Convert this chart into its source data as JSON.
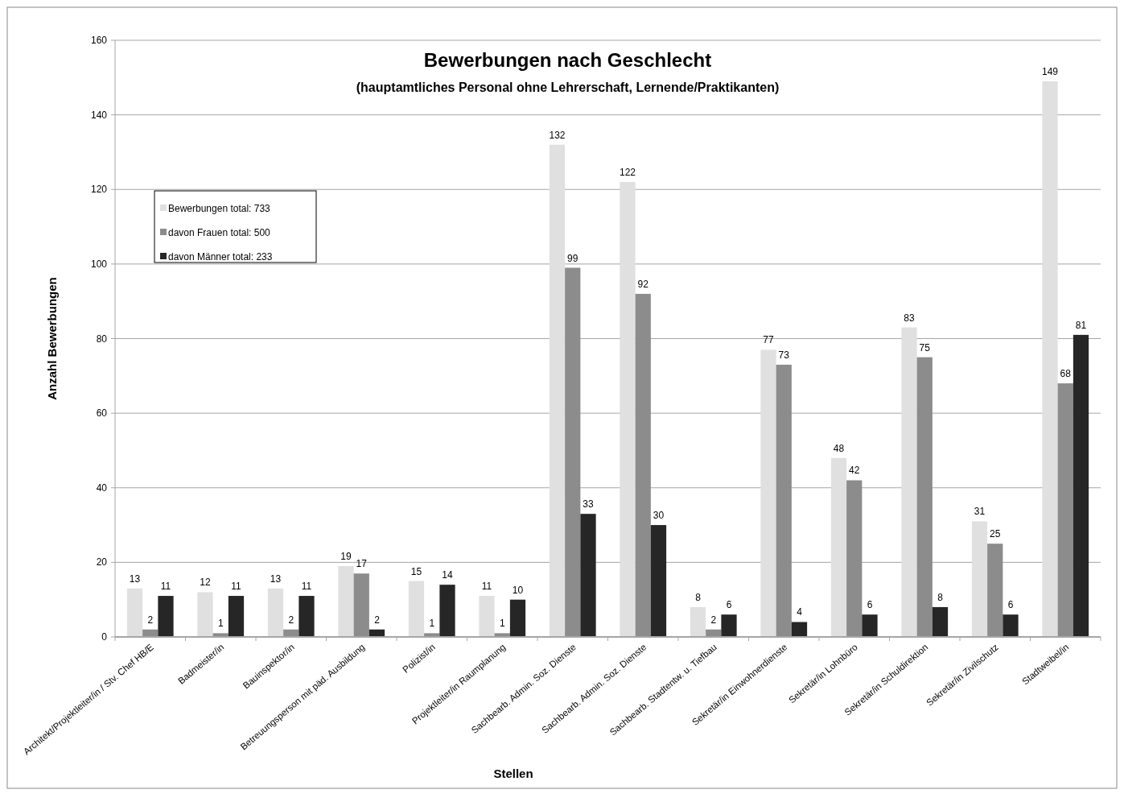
{
  "chart_data": {
    "type": "bar",
    "title": "Bewerbungen nach Geschlecht",
    "subtitle": "(hauptamtliches Personal ohne Lehrerschaft, Lernende/Praktikanten)",
    "xlabel": "Stellen",
    "ylabel": "Anzahl Bewerbungen",
    "categories": [
      "Architekt/Projektleiter/in / Stv. Chef HB/E",
      "Badmeister/in",
      "Bauinspektor/in",
      "Betreuungsperson mit päd. Ausbildung",
      "Polizist/in",
      "Projektleiter/in Raumplanung",
      "Sachbearb. Admin. Soz. Dienste",
      "Sachbearb. Admin. Soz. Dienste",
      "Sachbearb. Stadtentw. u. Tiefbau",
      "Sekretär/in Einwohnerdienste",
      "Sekretär/in Lohnbüro",
      "Sekretär/in Schuldirektion",
      "Sekretär/in Zivilschutz",
      "Stadtweibel/in"
    ],
    "series": [
      {
        "name": "Bewerbungen total: 733",
        "color": "#e0e0e0",
        "values": [
          13,
          12,
          13,
          19,
          15,
          11,
          132,
          122,
          8,
          77,
          48,
          83,
          31,
          149
        ]
      },
      {
        "name": "davon Frauen total: 500",
        "color": "#8c8c8c",
        "values": [
          2,
          1,
          2,
          17,
          1,
          1,
          99,
          92,
          2,
          73,
          42,
          75,
          25,
          68
        ]
      },
      {
        "name": "davon Männer total: 233",
        "color": "#262626",
        "values": [
          11,
          11,
          11,
          2,
          14,
          10,
          33,
          30,
          6,
          4,
          6,
          8,
          6,
          81
        ]
      }
    ],
    "ylim": [
      0,
      160
    ],
    "yticks": [
      0,
      20,
      40,
      60,
      80,
      100,
      120,
      140,
      160
    ],
    "grid": "y",
    "legend": "top left",
    "data_labels": true
  }
}
